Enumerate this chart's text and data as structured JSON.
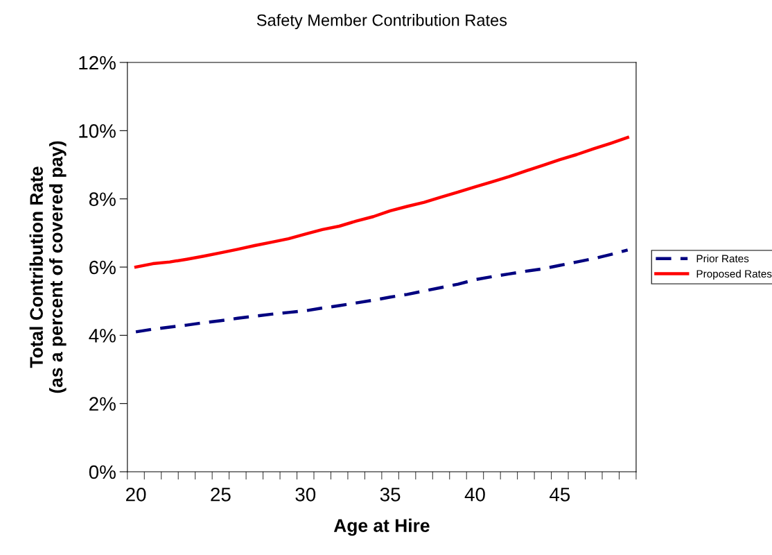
{
  "chart_data": {
    "type": "line",
    "title": "Safety Member Contribution Rates",
    "xlabel": "Age at Hire",
    "ylabel": "Total Contribution Rate\n(as a percent of covered pay)",
    "categories": [
      "20",
      null,
      null,
      null,
      null,
      "25",
      null,
      null,
      null,
      null,
      "30",
      null,
      null,
      null,
      null,
      "35",
      null,
      null,
      null,
      null,
      "40",
      null,
      null,
      null,
      null,
      "45",
      null,
      null,
      null,
      null
    ],
    "series": [
      {
        "name": "Prior Rates",
        "color": "#000080",
        "line_style": "dashed",
        "values": [
          4.1,
          4.18,
          4.24,
          4.3,
          4.37,
          4.43,
          4.5,
          4.56,
          4.62,
          4.67,
          4.72,
          4.8,
          4.87,
          4.95,
          5.03,
          5.12,
          5.2,
          5.3,
          5.4,
          5.5,
          5.63,
          5.72,
          5.8,
          5.88,
          5.95,
          6.05,
          6.15,
          6.25,
          6.37,
          6.5
        ]
      },
      {
        "name": "Proposed Rates",
        "color": "#ff0000",
        "line_style": "solid",
        "values": [
          6.0,
          6.1,
          6.15,
          6.23,
          6.32,
          6.42,
          6.52,
          6.63,
          6.73,
          6.83,
          6.97,
          7.1,
          7.2,
          7.35,
          7.48,
          7.65,
          7.78,
          7.9,
          8.05,
          8.2,
          8.35,
          8.5,
          8.65,
          8.82,
          8.98,
          9.15,
          9.3,
          9.47,
          9.63,
          9.8
        ]
      }
    ],
    "ylim": [
      0,
      12
    ],
    "yticks": [
      {
        "value": 0,
        "label": "0%"
      },
      {
        "value": 2,
        "label": "2%"
      },
      {
        "value": 4,
        "label": "4%"
      },
      {
        "value": 6,
        "label": "6%"
      },
      {
        "value": 8,
        "label": "8%"
      },
      {
        "value": 10,
        "label": "10%"
      },
      {
        "value": 12,
        "label": "12%"
      }
    ],
    "grid": false,
    "legend": "right",
    "marker": "none"
  }
}
